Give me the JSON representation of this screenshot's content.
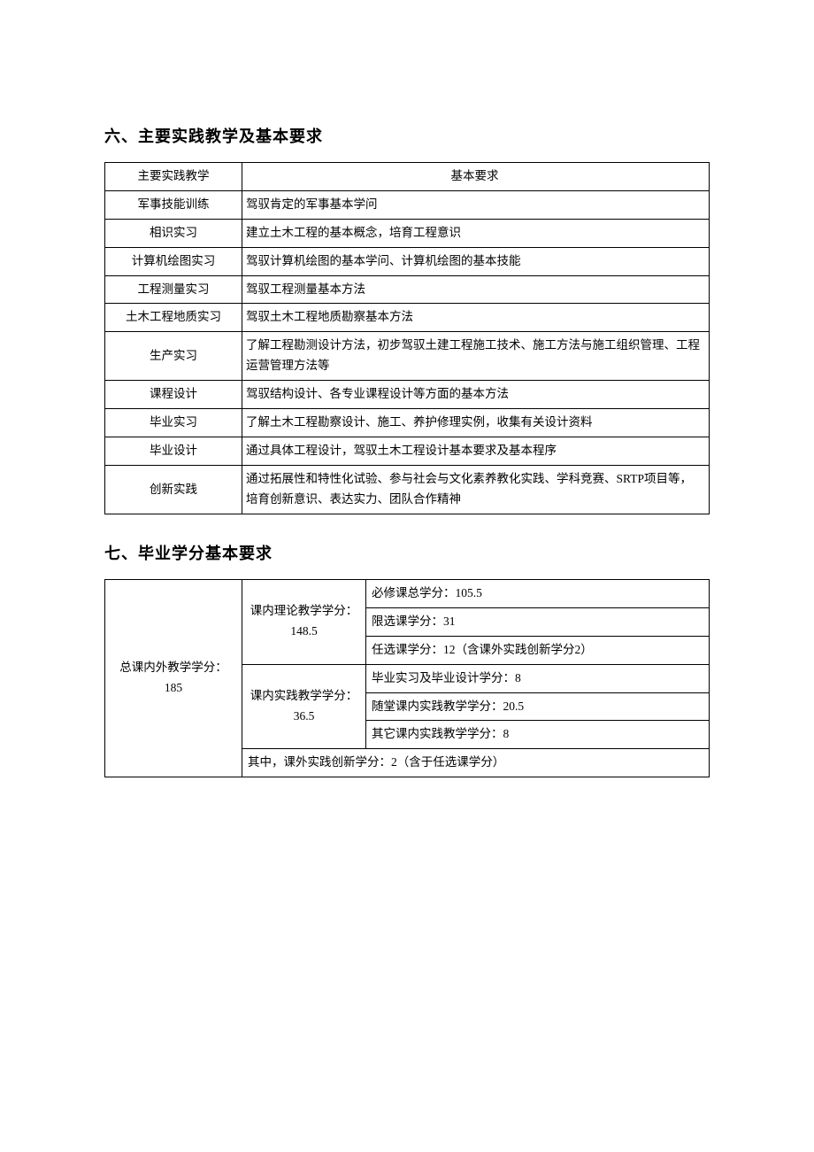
{
  "section6": {
    "heading": "六、主要实践教学及基本要求",
    "header": {
      "col1": "主要实践教学",
      "col2": "基本要求"
    },
    "rows": [
      {
        "name": "军事技能训练",
        "req": "驾驭肯定的军事基本学问"
      },
      {
        "name": "相识实习",
        "req": "建立土木工程的基本概念，培育工程意识"
      },
      {
        "name": "计算机绘图实习",
        "req": "驾驭计算机绘图的基本学问、计算机绘图的基本技能"
      },
      {
        "name": "工程测量实习",
        "req": "驾驭工程测量基本方法"
      },
      {
        "name": "土木工程地质实习",
        "req": "驾驭土木工程地质勘察基本方法"
      },
      {
        "name": "生产实习",
        "req": "了解工程勘测设计方法，初步驾驭土建工程施工技术、施工方法与施工组织管理、工程运营管理方法等"
      },
      {
        "name": "课程设计",
        "req": "驾驭结构设计、各专业课程设计等方面的基本方法"
      },
      {
        "name": "毕业实习",
        "req": "了解土木工程勘察设计、施工、养护修理实例，收集有关设计资料"
      },
      {
        "name": "毕业设计",
        "req": "通过具体工程设计，驾驭土木工程设计基本要求及基本程序"
      },
      {
        "name": "创新实践",
        "req": "通过拓展性和特性化试验、参与社会与文化素养教化实践、学科竞赛、SRTP项目等，培育创新意识、表达实力、团队合作精神"
      }
    ]
  },
  "section7": {
    "heading": "七、毕业学分基本要求",
    "total": {
      "line1": "总课内外教学学分：",
      "line2": "185"
    },
    "theory": {
      "line1": "课内理论教学学分：",
      "line2": "148.5",
      "items": [
        "必修课总学分：105.5",
        "限选课学分：31",
        "任选课学分：12（含课外实践创新学分2）"
      ]
    },
    "practice": {
      "line1": "课内实践教学学分：",
      "line2": "36.5",
      "items": [
        "毕业实习及毕业设计学分：8",
        "随堂课内实践教学学分：20.5",
        "其它课内实践教学学分：8"
      ]
    },
    "extra": "其中，课外实践创新学分：2（含于任选课学分）"
  }
}
